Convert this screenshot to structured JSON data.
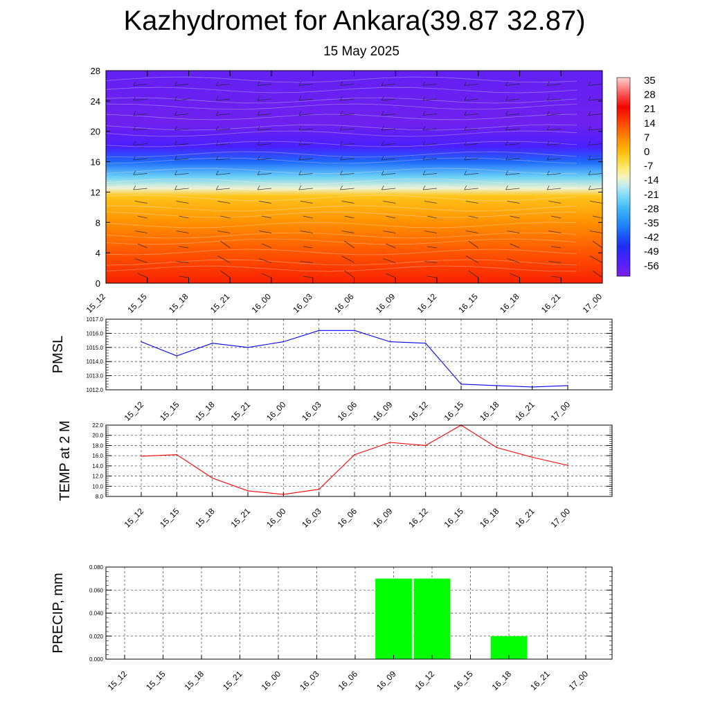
{
  "header": {
    "title": "Kazhydromet for Ankara(39.87 32.87)",
    "date": "15 May 2025"
  },
  "time_labels": [
    "15_12",
    "15_15",
    "15_18",
    "15_21",
    "16_00",
    "16_03",
    "16_06",
    "16_09",
    "16_12",
    "16_15",
    "16_18",
    "16_21",
    "17_00"
  ],
  "colors": {
    "pmsl_line": "#0000ff",
    "temp_line": "#ff0000",
    "precip_bar": "#00ff00",
    "grid": "#555555"
  },
  "chart_data": [
    {
      "type": "heatmap",
      "name": "cross-section",
      "categories": [
        "15_12",
        "15_15",
        "15_18",
        "15_21",
        "16_00",
        "16_03",
        "16_06",
        "16_09",
        "16_12",
        "16_15",
        "16_18",
        "16_21",
        "17_00"
      ],
      "y_ticks": [
        "0",
        "4",
        "8",
        "12",
        "16",
        "20",
        "24",
        "28"
      ],
      "ylim": [
        0,
        28
      ],
      "colorbar": {
        "labels": [
          "35",
          "28",
          "21",
          "14",
          "7",
          "0",
          "-7",
          "-14",
          "-21",
          "-28",
          "-35",
          "-42",
          "-49",
          "-56"
        ],
        "range": [
          -60,
          38
        ]
      },
      "overlay": "wind barbs",
      "temperature_profile": [
        {
          "y": 0,
          "value": 20
        },
        {
          "y": 4,
          "value": 14
        },
        {
          "y": 8,
          "value": 7
        },
        {
          "y": 11.5,
          "value": 0
        },
        {
          "y": 12.5,
          "value": -12
        },
        {
          "y": 14,
          "value": -22
        },
        {
          "y": 16,
          "value": -38
        },
        {
          "y": 18,
          "value": -52
        },
        {
          "y": 21,
          "value": -58
        },
        {
          "y": 28,
          "value": -56
        }
      ]
    },
    {
      "type": "line",
      "ylabel": "PMSL",
      "categories": [
        "15_12",
        "15_15",
        "15_18",
        "15_21",
        "16_00",
        "16_03",
        "16_06",
        "16_09",
        "16_12",
        "16_15",
        "16_18",
        "16_21",
        "17_00"
      ],
      "series": [
        {
          "values": [
            1015.4,
            1014.4,
            1015.3,
            1015.0,
            1015.4,
            1016.2,
            1016.2,
            1015.4,
            1015.3,
            1012.4,
            1012.3,
            1012.2,
            1012.3
          ]
        }
      ],
      "ylim": [
        1012.0,
        1017.0
      ],
      "y_ticks": [
        "1012.0",
        "1013.0",
        "1014.0",
        "1015.0",
        "1016.0",
        "1017.0"
      ],
      "grid": true
    },
    {
      "type": "line",
      "ylabel": "TEMP at 2 M",
      "categories": [
        "15_12",
        "15_15",
        "15_18",
        "15_21",
        "16_00",
        "16_03",
        "16_06",
        "16_09",
        "16_12",
        "16_15",
        "16_18",
        "16_21",
        "17_00"
      ],
      "series": [
        {
          "values": [
            15.9,
            16.2,
            11.6,
            9.1,
            8.4,
            9.4,
            16.2,
            18.6,
            18.0,
            22.0,
            17.6,
            15.7,
            14.1
          ]
        }
      ],
      "ylim": [
        8.0,
        22.0
      ],
      "y_ticks": [
        "8.0",
        "10.0",
        "12.0",
        "14.0",
        "16.0",
        "18.0",
        "20.0",
        "22.0"
      ],
      "grid": true
    },
    {
      "type": "bar",
      "ylabel": "PRECIP, mm",
      "categories": [
        "15_12",
        "15_15",
        "15_18",
        "15_21",
        "16_00",
        "16_03",
        "16_06",
        "16_09",
        "16_12",
        "16_15",
        "16_18",
        "16_21",
        "17_00"
      ],
      "values": [
        0,
        0,
        0,
        0,
        0,
        0,
        0,
        0.07,
        0.07,
        0,
        0.02,
        0,
        0
      ],
      "ylim": [
        0,
        0.08
      ],
      "y_ticks": [
        "0.000",
        "0.020",
        "0.040",
        "0.060",
        "0.080"
      ],
      "grid": true
    }
  ]
}
